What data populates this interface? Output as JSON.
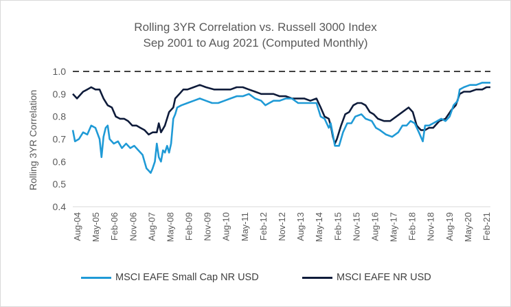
{
  "chart_data": {
    "type": "line",
    "title": "Rolling 3YR Correlation vs. Russell 3000 Index",
    "subtitle": "Sep 2001 to Aug 2021 (Computed Monthly)",
    "xlabel": "",
    "ylabel": "Rolling 3YR Correlation",
    "ylim": [
      0.4,
      1.0
    ],
    "yticks": [
      "1.0",
      "0.9",
      "0.8",
      "0.7",
      "0.6",
      "0.5",
      "0.4"
    ],
    "xlim": [
      2004.58,
      2021.58
    ],
    "xtick_labels": [
      "Aug-04",
      "May-05",
      "Feb-06",
      "Nov-06",
      "Aug-07",
      "May-08",
      "Feb-09",
      "Nov-09",
      "Aug-10",
      "May-11",
      "Feb-12",
      "Nov-12",
      "Aug-13",
      "May-14",
      "Feb-15",
      "Nov-15",
      "Aug-16",
      "May-17",
      "Feb-18",
      "Nov-18",
      "Aug-19",
      "May-20",
      "Feb-21"
    ],
    "reference_line": 1.0,
    "series": [
      {
        "name": "MSCI EAFE Small Cap NR USD",
        "color": "#1f9ad6",
        "points": [
          [
            2004.58,
            0.74
          ],
          [
            2004.67,
            0.69
          ],
          [
            2004.83,
            0.7
          ],
          [
            2005.0,
            0.73
          ],
          [
            2005.17,
            0.72
          ],
          [
            2005.33,
            0.76
          ],
          [
            2005.5,
            0.75
          ],
          [
            2005.67,
            0.7
          ],
          [
            2005.75,
            0.62
          ],
          [
            2005.83,
            0.71
          ],
          [
            2005.92,
            0.75
          ],
          [
            2006.0,
            0.76
          ],
          [
            2006.08,
            0.7
          ],
          [
            2006.25,
            0.68
          ],
          [
            2006.42,
            0.69
          ],
          [
            2006.58,
            0.66
          ],
          [
            2006.75,
            0.68
          ],
          [
            2006.92,
            0.66
          ],
          [
            2007.08,
            0.67
          ],
          [
            2007.25,
            0.65
          ],
          [
            2007.42,
            0.63
          ],
          [
            2007.5,
            0.6
          ],
          [
            2007.58,
            0.57
          ],
          [
            2007.67,
            0.56
          ],
          [
            2007.75,
            0.55
          ],
          [
            2007.83,
            0.57
          ],
          [
            2007.92,
            0.6
          ],
          [
            2008.0,
            0.68
          ],
          [
            2008.08,
            0.62
          ],
          [
            2008.17,
            0.6
          ],
          [
            2008.25,
            0.65
          ],
          [
            2008.33,
            0.64
          ],
          [
            2008.42,
            0.67
          ],
          [
            2008.5,
            0.64
          ],
          [
            2008.58,
            0.68
          ],
          [
            2008.67,
            0.79
          ],
          [
            2008.75,
            0.81
          ],
          [
            2008.83,
            0.84
          ],
          [
            2009.0,
            0.85
          ],
          [
            2009.25,
            0.86
          ],
          [
            2009.5,
            0.87
          ],
          [
            2009.75,
            0.88
          ],
          [
            2010.0,
            0.87
          ],
          [
            2010.25,
            0.86
          ],
          [
            2010.5,
            0.86
          ],
          [
            2010.75,
            0.87
          ],
          [
            2011.0,
            0.88
          ],
          [
            2011.25,
            0.89
          ],
          [
            2011.5,
            0.89
          ],
          [
            2011.75,
            0.9
          ],
          [
            2012.0,
            0.88
          ],
          [
            2012.25,
            0.87
          ],
          [
            2012.42,
            0.85
          ],
          [
            2012.58,
            0.86
          ],
          [
            2012.75,
            0.87
          ],
          [
            2013.0,
            0.87
          ],
          [
            2013.25,
            0.88
          ],
          [
            2013.5,
            0.88
          ],
          [
            2013.75,
            0.86
          ],
          [
            2014.0,
            0.86
          ],
          [
            2014.25,
            0.86
          ],
          [
            2014.5,
            0.86
          ],
          [
            2014.67,
            0.8
          ],
          [
            2014.83,
            0.79
          ],
          [
            2015.0,
            0.75
          ],
          [
            2015.08,
            0.77
          ],
          [
            2015.17,
            0.72
          ],
          [
            2015.25,
            0.67
          ],
          [
            2015.42,
            0.67
          ],
          [
            2015.58,
            0.73
          ],
          [
            2015.75,
            0.77
          ],
          [
            2015.92,
            0.77
          ],
          [
            2016.08,
            0.8
          ],
          [
            2016.33,
            0.81
          ],
          [
            2016.5,
            0.79
          ],
          [
            2016.75,
            0.78
          ],
          [
            2016.92,
            0.75
          ],
          [
            2017.08,
            0.74
          ],
          [
            2017.33,
            0.72
          ],
          [
            2017.58,
            0.71
          ],
          [
            2017.83,
            0.73
          ],
          [
            2018.0,
            0.76
          ],
          [
            2018.17,
            0.76
          ],
          [
            2018.33,
            0.78
          ],
          [
            2018.5,
            0.77
          ],
          [
            2018.67,
            0.73
          ],
          [
            2018.83,
            0.69
          ],
          [
            2018.92,
            0.76
          ],
          [
            2019.08,
            0.76
          ],
          [
            2019.25,
            0.77
          ],
          [
            2019.42,
            0.78
          ],
          [
            2019.58,
            0.79
          ],
          [
            2019.75,
            0.78
          ],
          [
            2019.92,
            0.8
          ],
          [
            2020.08,
            0.85
          ],
          [
            2020.25,
            0.87
          ],
          [
            2020.33,
            0.92
          ],
          [
            2020.5,
            0.93
          ],
          [
            2020.75,
            0.94
          ],
          [
            2021.0,
            0.94
          ],
          [
            2021.25,
            0.95
          ],
          [
            2021.42,
            0.95
          ],
          [
            2021.58,
            0.95
          ]
        ]
      },
      {
        "name": "MSCI EAFE NR USD",
        "color": "#0e1b3a",
        "points": [
          [
            2004.58,
            0.9
          ],
          [
            2004.75,
            0.88
          ],
          [
            2005.0,
            0.91
          ],
          [
            2005.17,
            0.92
          ],
          [
            2005.33,
            0.93
          ],
          [
            2005.5,
            0.92
          ],
          [
            2005.67,
            0.92
          ],
          [
            2005.83,
            0.88
          ],
          [
            2006.0,
            0.85
          ],
          [
            2006.17,
            0.84
          ],
          [
            2006.33,
            0.8
          ],
          [
            2006.5,
            0.79
          ],
          [
            2006.67,
            0.79
          ],
          [
            2006.83,
            0.78
          ],
          [
            2007.0,
            0.76
          ],
          [
            2007.17,
            0.76
          ],
          [
            2007.33,
            0.75
          ],
          [
            2007.5,
            0.74
          ],
          [
            2007.67,
            0.72
          ],
          [
            2007.83,
            0.73
          ],
          [
            2008.0,
            0.73
          ],
          [
            2008.08,
            0.77
          ],
          [
            2008.17,
            0.73
          ],
          [
            2008.33,
            0.76
          ],
          [
            2008.5,
            0.82
          ],
          [
            2008.67,
            0.84
          ],
          [
            2008.75,
            0.88
          ],
          [
            2008.92,
            0.9
          ],
          [
            2009.08,
            0.92
          ],
          [
            2009.25,
            0.92
          ],
          [
            2009.5,
            0.93
          ],
          [
            2009.75,
            0.94
          ],
          [
            2010.0,
            0.93
          ],
          [
            2010.33,
            0.92
          ],
          [
            2010.67,
            0.92
          ],
          [
            2011.0,
            0.92
          ],
          [
            2011.25,
            0.93
          ],
          [
            2011.5,
            0.93
          ],
          [
            2011.75,
            0.92
          ],
          [
            2012.0,
            0.91
          ],
          [
            2012.25,
            0.9
          ],
          [
            2012.5,
            0.9
          ],
          [
            2012.75,
            0.9
          ],
          [
            2013.0,
            0.89
          ],
          [
            2013.25,
            0.89
          ],
          [
            2013.5,
            0.88
          ],
          [
            2013.75,
            0.88
          ],
          [
            2014.0,
            0.88
          ],
          [
            2014.25,
            0.87
          ],
          [
            2014.5,
            0.88
          ],
          [
            2014.67,
            0.84
          ],
          [
            2014.83,
            0.8
          ],
          [
            2015.0,
            0.79
          ],
          [
            2015.08,
            0.76
          ],
          [
            2015.17,
            0.71
          ],
          [
            2015.25,
            0.68
          ],
          [
            2015.33,
            0.7
          ],
          [
            2015.5,
            0.76
          ],
          [
            2015.67,
            0.81
          ],
          [
            2015.83,
            0.82
          ],
          [
            2016.0,
            0.85
          ],
          [
            2016.17,
            0.86
          ],
          [
            2016.33,
            0.86
          ],
          [
            2016.5,
            0.85
          ],
          [
            2016.67,
            0.82
          ],
          [
            2016.83,
            0.81
          ],
          [
            2017.0,
            0.79
          ],
          [
            2017.25,
            0.78
          ],
          [
            2017.5,
            0.78
          ],
          [
            2017.75,
            0.8
          ],
          [
            2018.0,
            0.82
          ],
          [
            2018.25,
            0.84
          ],
          [
            2018.42,
            0.82
          ],
          [
            2018.58,
            0.76
          ],
          [
            2018.75,
            0.74
          ],
          [
            2018.92,
            0.74
          ],
          [
            2019.08,
            0.75
          ],
          [
            2019.25,
            0.75
          ],
          [
            2019.5,
            0.78
          ],
          [
            2019.75,
            0.79
          ],
          [
            2020.0,
            0.83
          ],
          [
            2020.17,
            0.85
          ],
          [
            2020.33,
            0.9
          ],
          [
            2020.5,
            0.91
          ],
          [
            2020.75,
            0.91
          ],
          [
            2021.0,
            0.92
          ],
          [
            2021.25,
            0.92
          ],
          [
            2021.42,
            0.93
          ],
          [
            2021.58,
            0.93
          ]
        ]
      }
    ]
  }
}
